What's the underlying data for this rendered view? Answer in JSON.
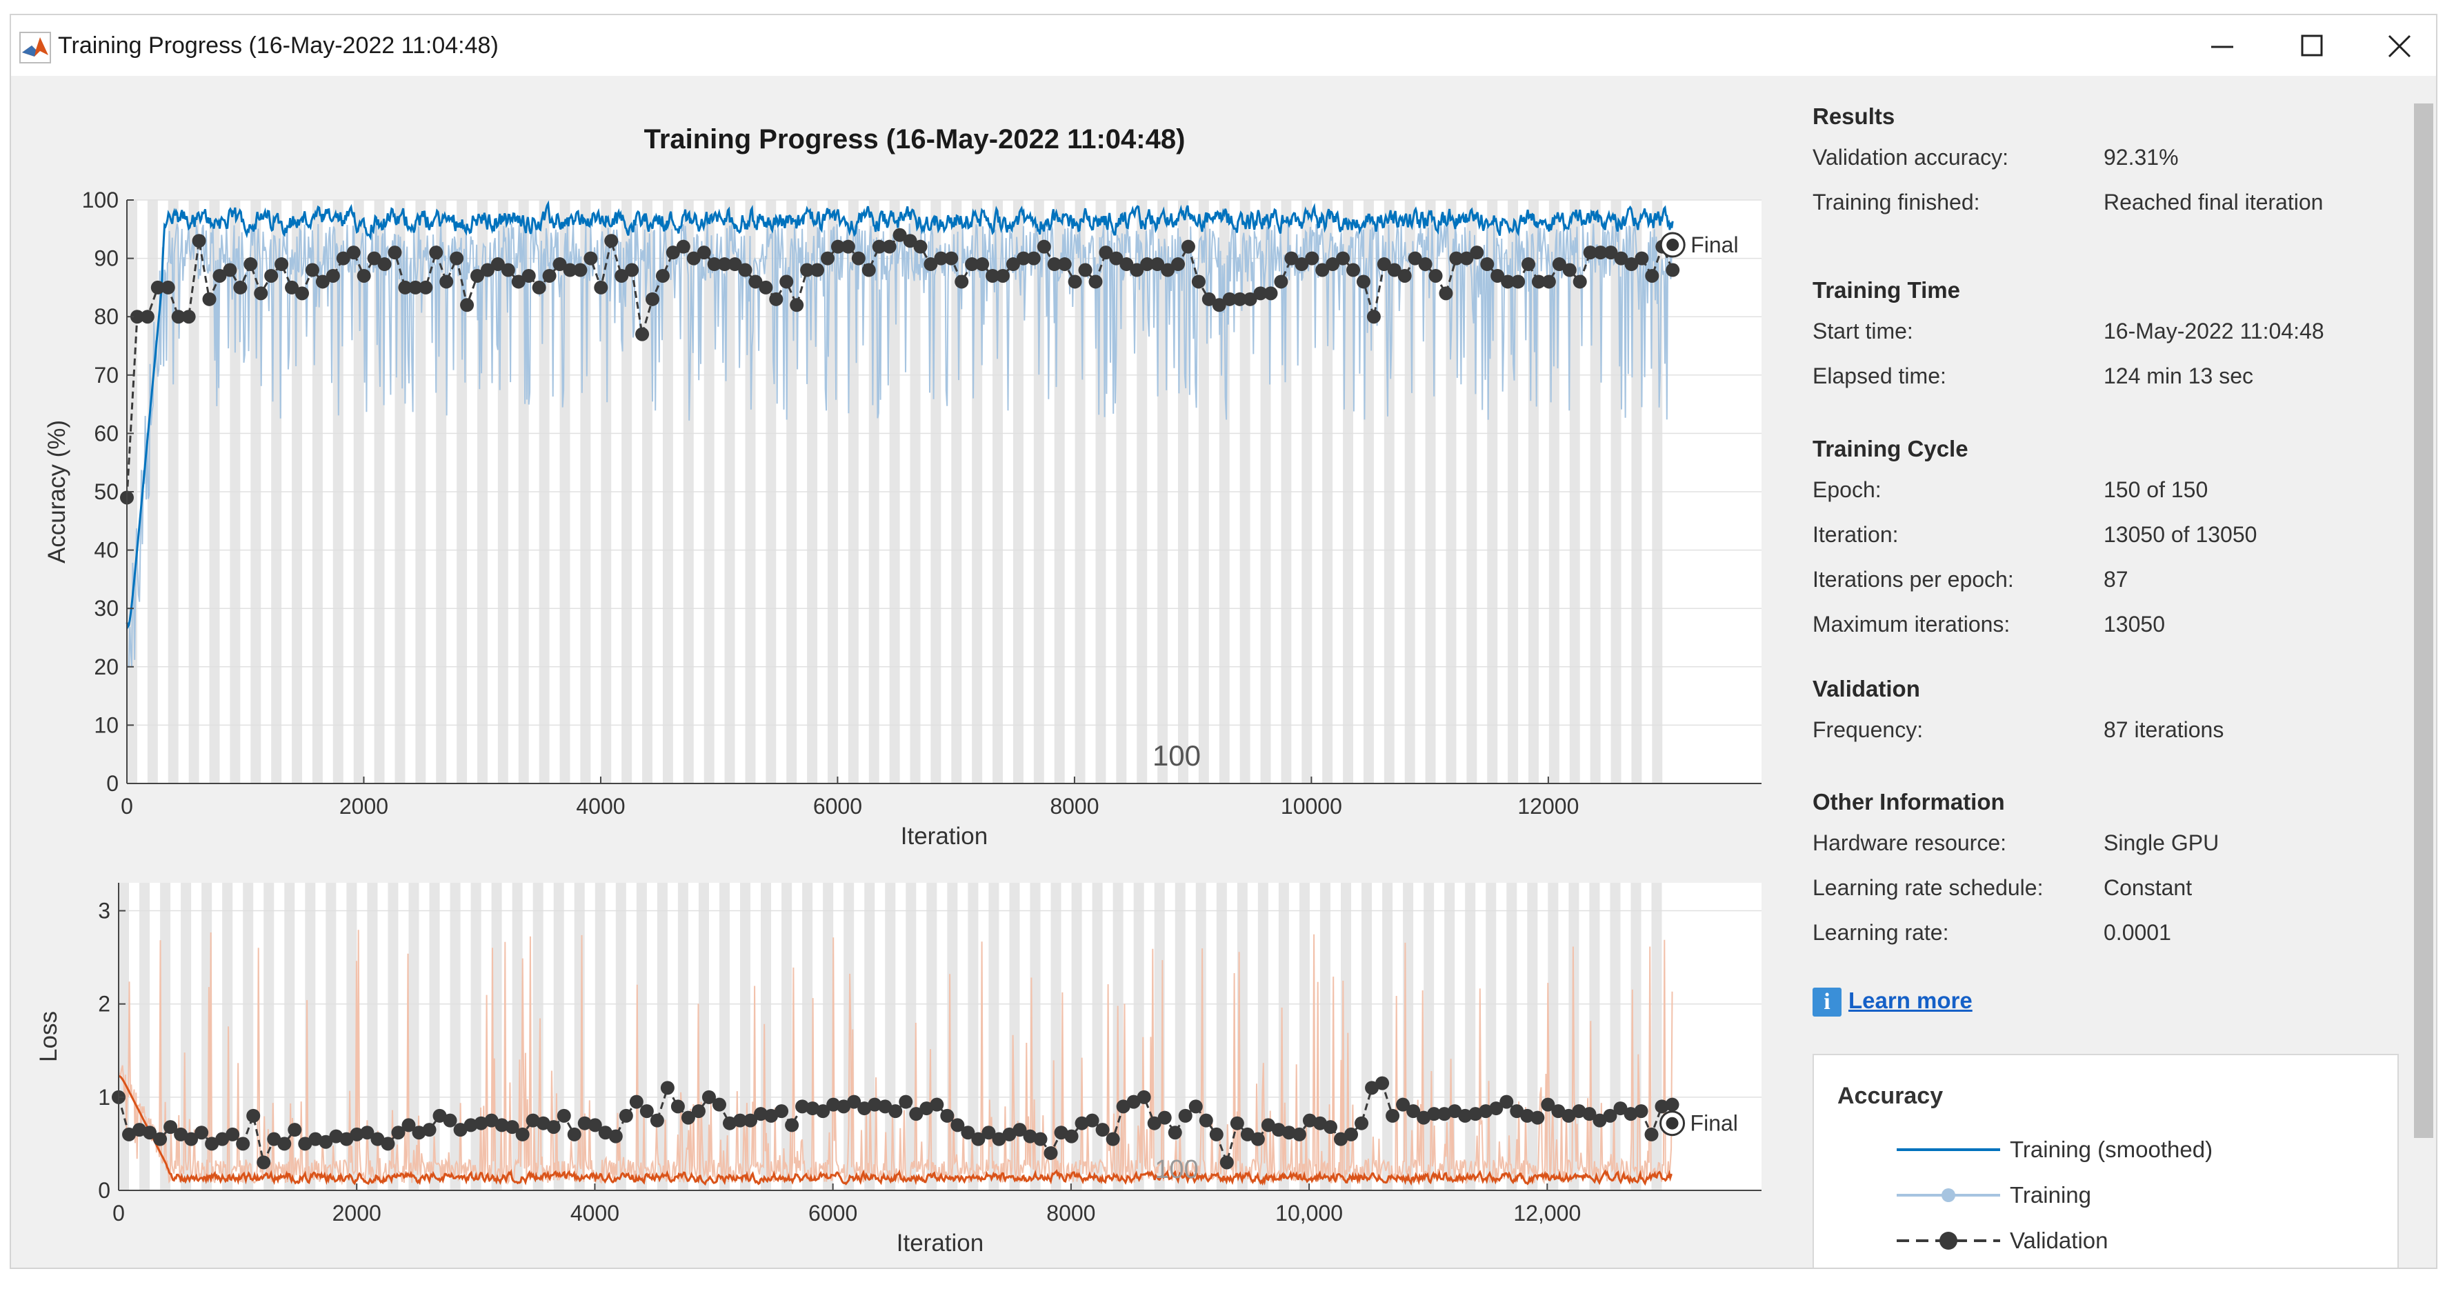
{
  "window": {
    "title": "Training Progress (16-May-2022 11:04:48)",
    "minimize_icon": "minimize-icon",
    "maximize_icon": "maximize-icon",
    "close_icon": "close-icon"
  },
  "plot_title": "Training Progress (16-May-2022 11:04:48)",
  "accuracy_chart": {
    "type": "line",
    "ylabel": "Accuracy (%)",
    "xlabel": "Iteration",
    "xlim": [
      0,
      13800
    ],
    "ylim": [
      0,
      100
    ],
    "xticks": [
      "0",
      "2000",
      "4000",
      "6000",
      "8000",
      "10000",
      "12000"
    ],
    "xtick_values": [
      0,
      2000,
      4000,
      6000,
      8000,
      10000,
      12000
    ],
    "yticks": [
      "0",
      "10",
      "20",
      "30",
      "40",
      "50",
      "60",
      "70",
      "80",
      "90",
      "100"
    ],
    "epoch_label": "100",
    "final_label": "Final",
    "final_validation": 92.31
  },
  "loss_chart": {
    "type": "line",
    "ylabel": "Loss",
    "xlabel": "Iteration",
    "xlim": [
      0,
      13800
    ],
    "ylim": [
      0,
      3.3
    ],
    "xticks": [
      "0",
      "2000",
      "4000",
      "6000",
      "8000",
      "10,000",
      "12,000"
    ],
    "xtick_values": [
      0,
      2000,
      4000,
      6000,
      8000,
      10000,
      12000
    ],
    "yticks": [
      "0",
      "1",
      "2",
      "3"
    ],
    "ytick_values": [
      0,
      1,
      2,
      3
    ],
    "epoch_label": "100",
    "final_label": "Final"
  },
  "chart_data": [
    {
      "type": "line",
      "title": "",
      "xlabel": "Iteration",
      "ylabel": "Accuracy (%)",
      "ylim": [
        0,
        100
      ],
      "series": [
        {
          "name": "Training (smoothed)",
          "color": "#0072bd"
        },
        {
          "name": "Training",
          "color": "#a6c4e0"
        },
        {
          "name": "Validation",
          "color": "#3a3a3a"
        }
      ],
      "validation_x": [
        0,
        87,
        174,
        261,
        348,
        435,
        522,
        609,
        696,
        783,
        870,
        957,
        1044,
        1131,
        1218,
        1305,
        1392,
        1479,
        1566,
        1653,
        1740,
        1827,
        1914,
        2001,
        2088,
        2175,
        2262,
        2349,
        2436,
        2523,
        2610,
        2697,
        2784,
        2871,
        2958,
        3045,
        3132,
        3219,
        3306,
        3393,
        3480,
        3567,
        3654,
        3741,
        3828,
        3915,
        4002,
        4089,
        4176,
        4263,
        4350,
        4437,
        4524,
        4611,
        4698,
        4785,
        4872,
        4959,
        5046,
        5133,
        5220,
        5307,
        5394,
        5481,
        5568,
        5655,
        5742,
        5829,
        5916,
        6003,
        6090,
        6177,
        6264,
        6351,
        6438,
        6525,
        6612,
        6699,
        6786,
        6873,
        6960,
        7047,
        7134,
        7221,
        7308,
        7395,
        7482,
        7569,
        7656,
        7743,
        7830,
        7917,
        8004,
        8091,
        8178,
        8265,
        8352,
        8439,
        8526,
        8613,
        8700,
        8787,
        8874,
        8961,
        9048,
        9135,
        9222,
        9309,
        9396,
        9483,
        9570,
        9657,
        9744,
        9831,
        9918,
        10005,
        10092,
        10179,
        10266,
        10353,
        10440,
        10527,
        10614,
        10701,
        10788,
        10875,
        10962,
        11049,
        11136,
        11223,
        11310,
        11397,
        11484,
        11571,
        11658,
        11745,
        11832,
        11919,
        12006,
        12093,
        12180,
        12267,
        12354,
        12441,
        12528,
        12615,
        12702,
        12789,
        12876,
        12963,
        13050
      ],
      "validation_y": [
        49,
        80,
        80,
        85,
        85,
        80,
        80,
        93,
        83,
        87,
        88,
        85,
        89,
        84,
        87,
        89,
        85,
        84,
        88,
        86,
        87,
        90,
        91,
        87,
        90,
        89,
        91,
        85,
        85,
        85,
        91,
        86,
        90,
        82,
        87,
        88,
        89,
        88,
        86,
        87,
        85,
        87,
        89,
        88,
        88,
        90,
        85,
        93,
        87,
        88,
        77,
        83,
        87,
        91,
        92,
        90,
        91,
        89,
        89,
        89,
        88,
        86,
        85,
        83,
        86,
        82,
        88,
        88,
        90,
        92,
        92,
        90,
        88,
        92,
        92,
        94,
        93,
        92,
        89,
        90,
        90,
        86,
        89,
        89,
        87,
        87,
        89,
        90,
        90,
        92,
        89,
        89,
        86,
        88,
        86,
        91,
        90,
        89,
        88,
        89,
        89,
        88,
        89,
        92,
        86,
        83,
        82,
        83,
        83,
        83,
        84,
        84,
        86,
        90,
        89,
        90,
        88,
        89,
        90,
        88,
        86,
        80,
        89,
        88,
        87,
        90,
        89,
        87,
        84,
        90,
        90,
        91,
        89,
        87,
        86,
        86,
        89,
        86,
        86,
        89,
        88,
        86,
        91,
        91,
        91,
        90,
        89,
        90,
        87,
        92,
        88
      ],
      "final_validation": 92.31
    },
    {
      "type": "line",
      "title": "",
      "xlabel": "Iteration",
      "ylabel": "Loss",
      "ylim": [
        0,
        3.3
      ],
      "series": [
        {
          "name": "Training (smoothed)",
          "color": "#d95319"
        },
        {
          "name": "Training",
          "color": "#f2c1ab"
        },
        {
          "name": "Validation",
          "color": "#3a3a3a"
        }
      ],
      "validation_x": [
        0,
        87,
        174,
        261,
        348,
        435,
        522,
        609,
        696,
        783,
        870,
        957,
        1044,
        1131,
        1218,
        1305,
        1392,
        1479,
        1566,
        1653,
        1740,
        1827,
        1914,
        2001,
        2088,
        2175,
        2262,
        2349,
        2436,
        2523,
        2610,
        2697,
        2784,
        2871,
        2958,
        3045,
        3132,
        3219,
        3306,
        3393,
        3480,
        3567,
        3654,
        3741,
        3828,
        3915,
        4002,
        4089,
        4176,
        4263,
        4350,
        4437,
        4524,
        4611,
        4698,
        4785,
        4872,
        4959,
        5046,
        5133,
        5220,
        5307,
        5394,
        5481,
        5568,
        5655,
        5742,
        5829,
        5916,
        6003,
        6090,
        6177,
        6264,
        6351,
        6438,
        6525,
        6612,
        6699,
        6786,
        6873,
        6960,
        7047,
        7134,
        7221,
        7308,
        7395,
        7482,
        7569,
        7656,
        7743,
        7830,
        7917,
        8004,
        8091,
        8178,
        8265,
        8352,
        8439,
        8526,
        8613,
        8700,
        8787,
        8874,
        8961,
        9048,
        9135,
        9222,
        9309,
        9396,
        9483,
        9570,
        9657,
        9744,
        9831,
        9918,
        10005,
        10092,
        10179,
        10266,
        10353,
        10440,
        10527,
        10614,
        10701,
        10788,
        10875,
        10962,
        11049,
        11136,
        11223,
        11310,
        11397,
        11484,
        11571,
        11658,
        11745,
        11832,
        11919,
        12006,
        12093,
        12180,
        12267,
        12354,
        12441,
        12528,
        12615,
        12702,
        12789,
        12876,
        12963,
        13050
      ],
      "validation_y": [
        1.0,
        0.6,
        0.65,
        0.62,
        0.55,
        0.68,
        0.6,
        0.55,
        0.62,
        0.5,
        0.55,
        0.6,
        0.5,
        0.8,
        0.3,
        0.55,
        0.5,
        0.65,
        0.5,
        0.55,
        0.52,
        0.58,
        0.55,
        0.6,
        0.62,
        0.55,
        0.5,
        0.62,
        0.7,
        0.62,
        0.65,
        0.8,
        0.75,
        0.65,
        0.7,
        0.72,
        0.75,
        0.7,
        0.68,
        0.6,
        0.75,
        0.72,
        0.68,
        0.8,
        0.6,
        0.72,
        0.7,
        0.62,
        0.58,
        0.8,
        0.95,
        0.85,
        0.75,
        1.1,
        0.9,
        0.78,
        0.85,
        1.0,
        0.92,
        0.72,
        0.75,
        0.75,
        0.82,
        0.8,
        0.85,
        0.7,
        0.9,
        0.88,
        0.85,
        0.92,
        0.9,
        0.95,
        0.88,
        0.92,
        0.9,
        0.85,
        0.95,
        0.82,
        0.88,
        0.92,
        0.8,
        0.7,
        0.62,
        0.55,
        0.62,
        0.55,
        0.6,
        0.65,
        0.58,
        0.55,
        0.4,
        0.62,
        0.58,
        0.72,
        0.75,
        0.65,
        0.55,
        0.9,
        0.95,
        1.0,
        0.72,
        0.78,
        0.62,
        0.8,
        0.9,
        0.75,
        0.6,
        0.3,
        0.72,
        0.6,
        0.55,
        0.7,
        0.65,
        0.62,
        0.6,
        0.75,
        0.72,
        0.68,
        0.55,
        0.6,
        0.72,
        1.1,
        1.15,
        0.8,
        0.92,
        0.85,
        0.78,
        0.82,
        0.82,
        0.85,
        0.8,
        0.82,
        0.85,
        0.88,
        0.95,
        0.85,
        0.8,
        0.78,
        0.92,
        0.85,
        0.8,
        0.85,
        0.82,
        0.75,
        0.8,
        0.88,
        0.82,
        0.85,
        0.6,
        0.9,
        0.92,
        0.85,
        0.72
      ]
    }
  ],
  "results": {
    "heading": "Results",
    "rows": [
      {
        "key": "Validation accuracy:",
        "value": "92.31%"
      },
      {
        "key": "Training finished:",
        "value": "Reached final iteration"
      }
    ]
  },
  "training_time": {
    "heading": "Training Time",
    "rows": [
      {
        "key": "Start time:",
        "value": "16-May-2022 11:04:48"
      },
      {
        "key": "Elapsed time:",
        "value": "124 min 13 sec"
      }
    ]
  },
  "training_cycle": {
    "heading": "Training Cycle",
    "rows": [
      {
        "key": "Epoch:",
        "value": "150 of 150"
      },
      {
        "key": "Iteration:",
        "value": "13050 of 13050"
      },
      {
        "key": "Iterations per epoch:",
        "value": "87"
      },
      {
        "key": "Maximum iterations:",
        "value": "13050"
      }
    ]
  },
  "validation": {
    "heading": "Validation",
    "rows": [
      {
        "key": "Frequency:",
        "value": "87 iterations"
      }
    ]
  },
  "other_info": {
    "heading": "Other Information",
    "rows": [
      {
        "key": "Hardware resource:",
        "value": "Single GPU"
      },
      {
        "key": "Learning rate schedule:",
        "value": "Constant"
      },
      {
        "key": "Learning rate:",
        "value": "0.0001"
      }
    ]
  },
  "learn_more": {
    "label": "Learn more",
    "icon": "info-icon"
  },
  "legend": {
    "title": "Accuracy",
    "items": [
      {
        "label": "Training (smoothed)",
        "color": "#0072bd",
        "style": "solid"
      },
      {
        "label": "Training",
        "color": "#a6c4e0",
        "style": "marker"
      },
      {
        "label": "Validation",
        "color": "#3a3a3a",
        "style": "dashed-marker"
      }
    ]
  }
}
